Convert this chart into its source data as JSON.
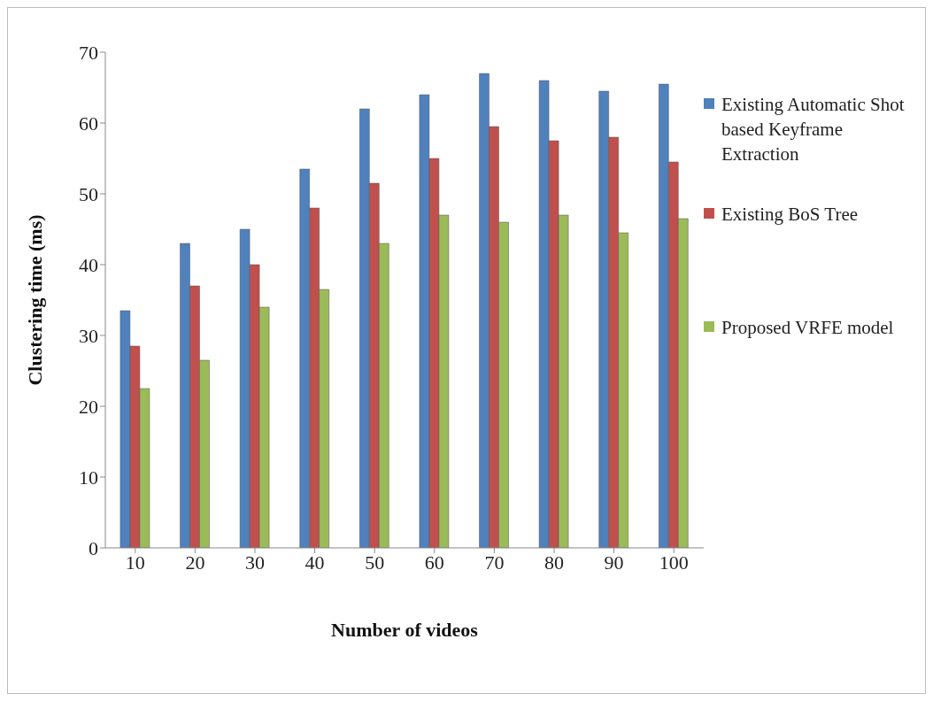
{
  "chart_data": {
    "type": "bar",
    "xlabel": "Number of videos",
    "ylabel": "Clustering time (ms)",
    "categories": [
      "10",
      "20",
      "30",
      "40",
      "50",
      "60",
      "70",
      "80",
      "90",
      "100"
    ],
    "series": [
      {
        "name": "Existing Automatic Shot based Keyframe Extraction",
        "color": "#4f81bd",
        "values": [
          33.5,
          43,
          45,
          53.5,
          62,
          64,
          67,
          66,
          64.5,
          65.5
        ]
      },
      {
        "name": "Existing BoS Tree",
        "color": "#c0504d",
        "values": [
          28.5,
          37,
          40,
          48,
          51.5,
          55,
          59.5,
          57.5,
          58,
          54.5
        ]
      },
      {
        "name": "Proposed VRFE model",
        "color": "#9bbb59",
        "values": [
          22.5,
          26.5,
          34,
          36.5,
          43,
          47,
          46,
          47,
          44.5,
          46.5
        ]
      }
    ],
    "ylim": [
      0,
      70
    ],
    "yticks": [
      0,
      10,
      20,
      30,
      40,
      50,
      60,
      70
    ],
    "grid": false,
    "legend": "right"
  }
}
